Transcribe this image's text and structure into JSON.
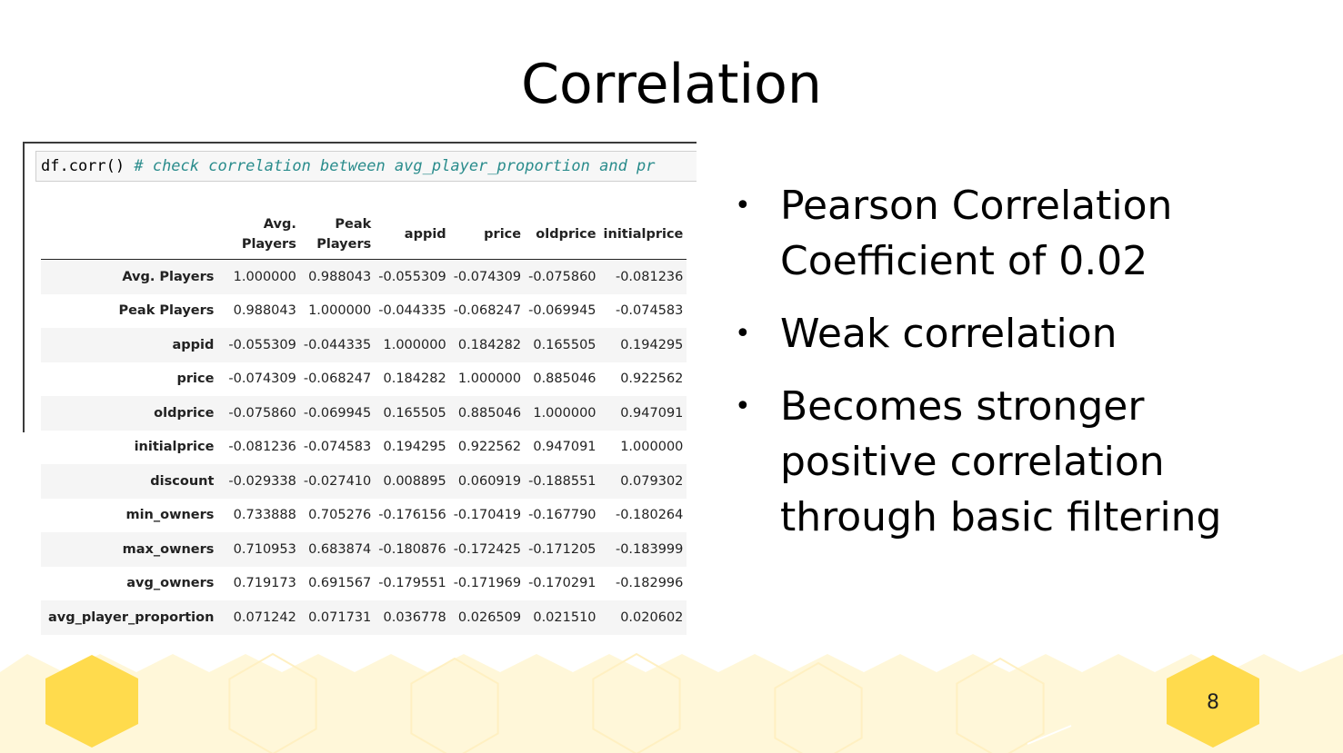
{
  "slide": {
    "title": "Correlation",
    "page_number": "8"
  },
  "code": {
    "call": "df.corr() ",
    "comment": "# check correlation between avg_player_proportion and pr"
  },
  "table": {
    "columns": [
      "Avg.\nPlayers",
      "Peak\nPlayers",
      "appid",
      "price",
      "oldprice",
      "initialprice"
    ],
    "rows": [
      {
        "label": "Avg. Players",
        "values": [
          "1.000000",
          "0.988043",
          "-0.055309",
          "-0.074309",
          "-0.075860",
          "-0.081236"
        ]
      },
      {
        "label": "Peak Players",
        "values": [
          "0.988043",
          "1.000000",
          "-0.044335",
          "-0.068247",
          "-0.069945",
          "-0.074583"
        ]
      },
      {
        "label": "appid",
        "values": [
          "-0.055309",
          "-0.044335",
          "1.000000",
          "0.184282",
          "0.165505",
          "0.194295"
        ]
      },
      {
        "label": "price",
        "values": [
          "-0.074309",
          "-0.068247",
          "0.184282",
          "1.000000",
          "0.885046",
          "0.922562"
        ]
      },
      {
        "label": "oldprice",
        "values": [
          "-0.075860",
          "-0.069945",
          "0.165505",
          "0.885046",
          "1.000000",
          "0.947091"
        ]
      },
      {
        "label": "initialprice",
        "values": [
          "-0.081236",
          "-0.074583",
          "0.194295",
          "0.922562",
          "0.947091",
          "1.000000"
        ]
      },
      {
        "label": "discount",
        "values": [
          "-0.029338",
          "-0.027410",
          "0.008895",
          "0.060919",
          "-0.188551",
          "0.079302"
        ]
      },
      {
        "label": "min_owners",
        "values": [
          "0.733888",
          "0.705276",
          "-0.176156",
          "-0.170419",
          "-0.167790",
          "-0.180264"
        ]
      },
      {
        "label": "max_owners",
        "values": [
          "0.710953",
          "0.683874",
          "-0.180876",
          "-0.172425",
          "-0.171205",
          "-0.183999"
        ]
      },
      {
        "label": "avg_owners",
        "values": [
          "0.719173",
          "0.691567",
          "-0.179551",
          "-0.171969",
          "-0.170291",
          "-0.182996"
        ]
      },
      {
        "label": "avg_player_proportion",
        "values": [
          "0.071242",
          "0.071731",
          "0.036778",
          "0.026509",
          "0.021510",
          "0.020602"
        ]
      }
    ]
  },
  "bullets": [
    "Pearson Correlation Coefficient of 0.02",
    "Weak correlation",
    "Becomes stronger positive correlation through basic filtering"
  ],
  "colors": {
    "hex_dark": "#ffdb4d",
    "hex_light": "#fff4cc",
    "band": "#fff7d9"
  }
}
